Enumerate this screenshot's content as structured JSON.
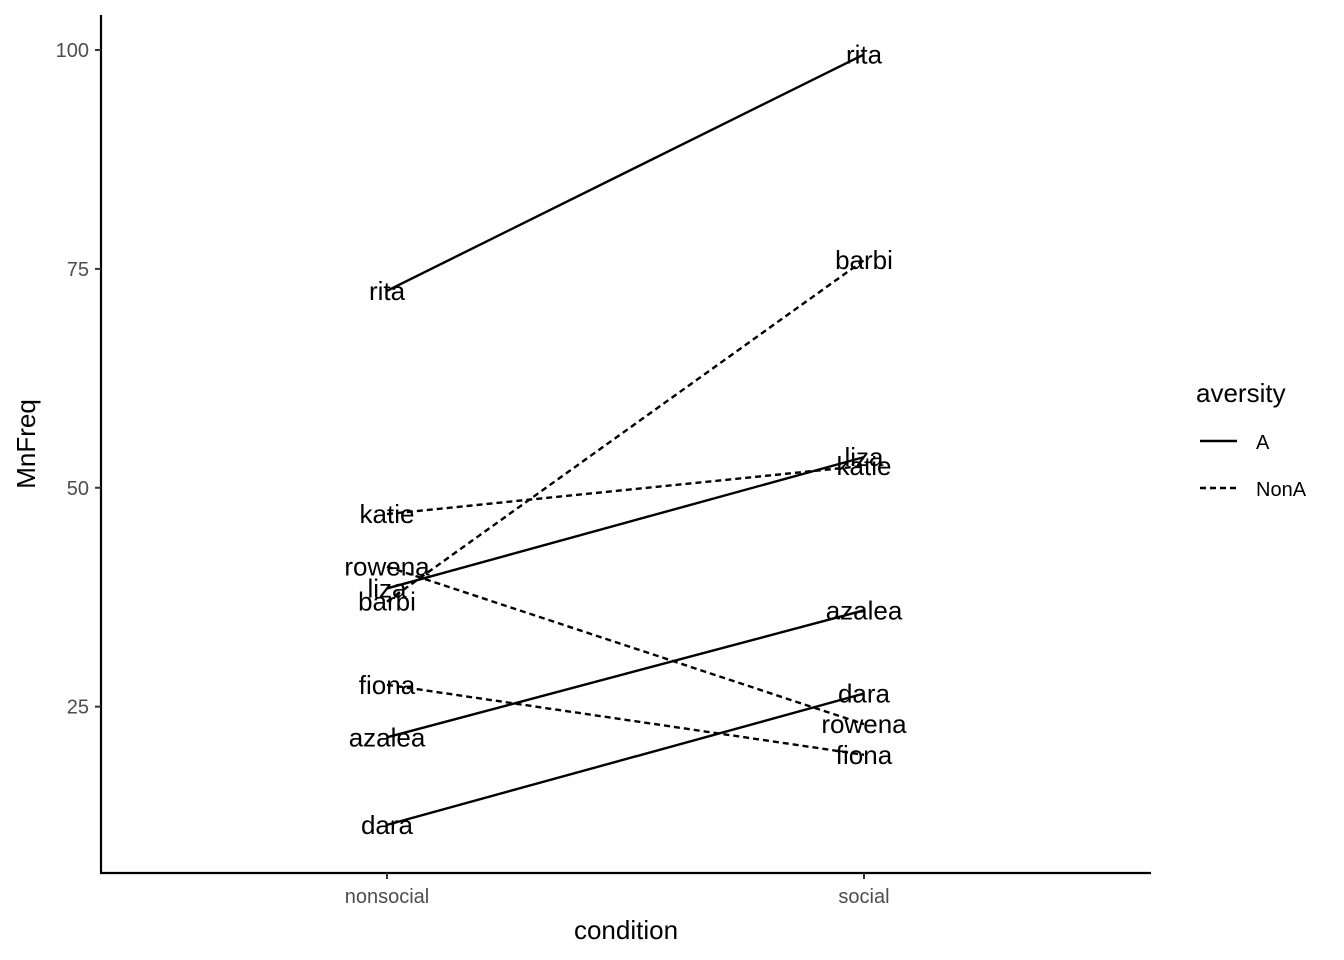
{
  "chart_data": {
    "type": "line",
    "x": [
      "nonsocial",
      "social"
    ],
    "xlabel": "condition",
    "ylabel": "MnFreq",
    "yticks": [
      25,
      50,
      75,
      100
    ],
    "ylim": [
      6,
      104
    ],
    "legend": {
      "title": "aversity",
      "placement": "right",
      "entries": [
        {
          "label": "A",
          "linetype": "solid"
        },
        {
          "label": "NonA",
          "linetype": "dashed"
        }
      ]
    },
    "series": [
      {
        "name": "rita",
        "aversity": "A",
        "values": [
          72.5,
          99.5
        ]
      },
      {
        "name": "liza",
        "aversity": "A",
        "values": [
          38.5,
          53.5
        ]
      },
      {
        "name": "azalea",
        "aversity": "A",
        "values": [
          21.5,
          36.0
        ]
      },
      {
        "name": "dara",
        "aversity": "A",
        "values": [
          11.5,
          26.5
        ]
      },
      {
        "name": "barbi",
        "aversity": "NonA",
        "values": [
          37.0,
          76.0
        ]
      },
      {
        "name": "katie",
        "aversity": "NonA",
        "values": [
          47.0,
          52.5
        ]
      },
      {
        "name": "rowena",
        "aversity": "NonA",
        "values": [
          41.0,
          23.0
        ]
      },
      {
        "name": "fiona",
        "aversity": "NonA",
        "values": [
          27.5,
          19.5
        ]
      }
    ],
    "colors": {
      "line": "#000000",
      "tick_text": "#4d4d4d",
      "background": "#ffffff"
    },
    "grid": false
  }
}
